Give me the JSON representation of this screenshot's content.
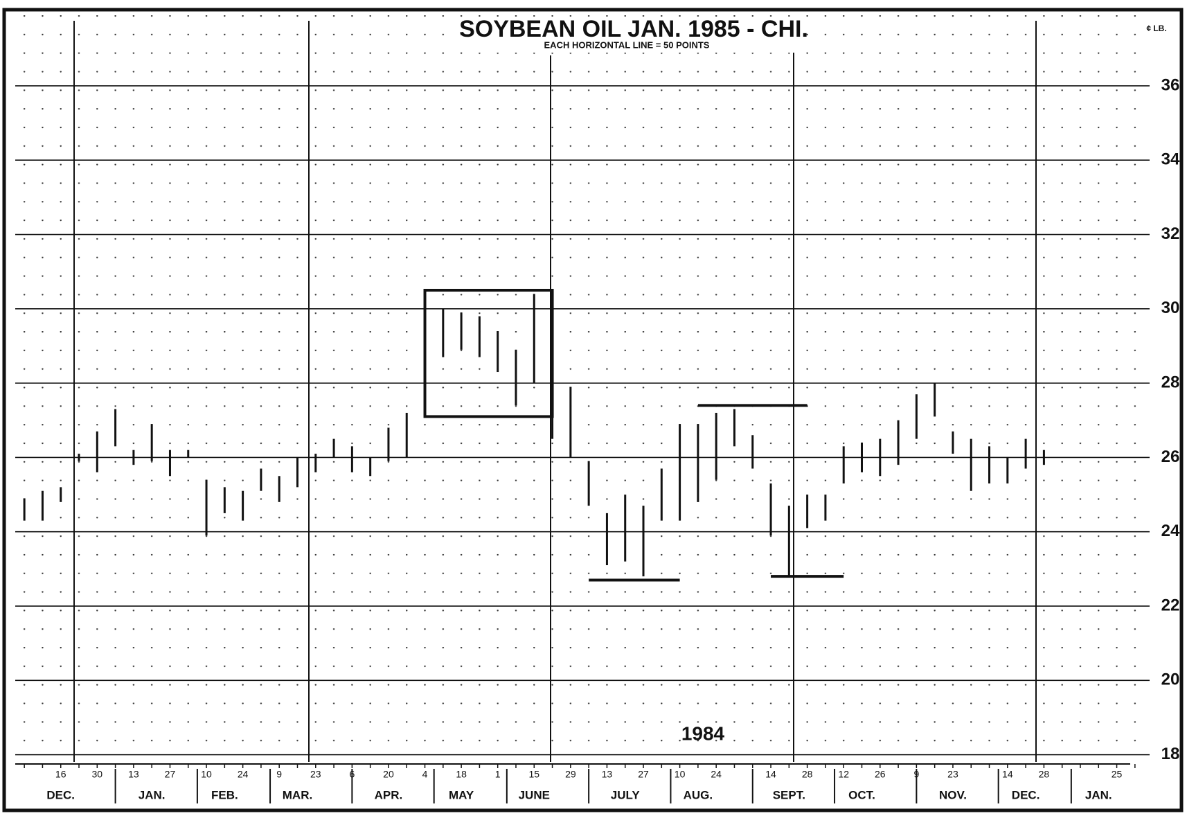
{
  "chart_data": {
    "type": "range_bar",
    "title": "SOYBEAN OIL JAN. 1985 - CHI.",
    "subtitle": "EACH HORIZONTAL LINE = 50 POINTS",
    "y_label": "¢ LB.",
    "annotation": "1984",
    "color": "#111111",
    "categories": [
      null,
      null,
      "16",
      null,
      "30",
      null,
      "13",
      null,
      "27",
      null,
      "10",
      null,
      "24",
      null,
      "9",
      null,
      "23",
      null,
      "6",
      null,
      "20",
      null,
      "4",
      null,
      "18",
      null,
      "1",
      null,
      "15",
      null,
      "29",
      null,
      "13",
      null,
      "27",
      null,
      "10",
      null,
      "24",
      null,
      null,
      "14",
      null,
      "28",
      null,
      "12",
      null,
      "26",
      null,
      "9",
      null,
      "23",
      null,
      null,
      "14",
      null,
      "28",
      null,
      null,
      null,
      "25",
      null
    ],
    "months": [
      null,
      null,
      "DEC.",
      null,
      null,
      null,
      null,
      "JAN.",
      null,
      null,
      null,
      "FEB.",
      null,
      null,
      null,
      "MAR.",
      null,
      null,
      null,
      null,
      "APR.",
      null,
      null,
      null,
      "MAY",
      null,
      null,
      null,
      "JUNE",
      null,
      null,
      null,
      null,
      "JULY",
      null,
      null,
      null,
      "AUG.",
      null,
      null,
      null,
      null,
      "SEPT.",
      null,
      null,
      null,
      "OCT.",
      null,
      null,
      null,
      null,
      "NOV.",
      null,
      null,
      null,
      "DEC.",
      null,
      null,
      null,
      "JAN.",
      null,
      null
    ],
    "low": [
      24.3,
      24.3,
      24.8,
      25.9,
      25.6,
      26.3,
      25.8,
      25.9,
      25.5,
      26.0,
      23.9,
      24.5,
      24.3,
      25.1,
      24.8,
      25.2,
      25.6,
      26.0,
      25.6,
      25.5,
      25.9,
      26.0,
      27.2,
      28.7,
      28.9,
      28.7,
      28.3,
      27.4,
      28.0,
      26.5,
      26.0,
      24.7,
      23.1,
      23.2,
      22.8,
      24.3,
      24.3,
      24.8,
      25.4,
      26.3,
      25.7,
      23.9,
      22.8,
      24.1,
      24.3,
      25.3,
      25.6,
      25.5,
      25.8,
      26.5,
      27.1,
      26.1,
      25.1,
      25.3,
      25.3,
      25.7,
      25.8,
      null,
      null,
      null,
      null,
      null
    ],
    "high": [
      24.9,
      25.1,
      25.2,
      26.1,
      26.7,
      27.3,
      26.2,
      26.9,
      26.2,
      26.2,
      25.4,
      25.2,
      25.1,
      25.7,
      25.5,
      26.0,
      26.1,
      26.5,
      26.3,
      26.0,
      26.8,
      27.2,
      28.6,
      30.0,
      29.9,
      29.8,
      29.4,
      28.9,
      30.4,
      30.2,
      27.9,
      25.9,
      24.5,
      25.0,
      24.7,
      25.7,
      26.9,
      26.9,
      27.2,
      27.3,
      26.6,
      25.3,
      24.7,
      25.0,
      25.0,
      26.3,
      26.4,
      26.5,
      27.0,
      27.7,
      28.0,
      26.7,
      26.5,
      26.3,
      26.0,
      26.5,
      26.2,
      null,
      null,
      null,
      null,
      null
    ],
    "box": {
      "x": [
        22,
        29
      ],
      "y": [
        27.1,
        30.5
      ]
    },
    "level_lines": [
      {
        "y": 22.7,
        "x": [
          31,
          36
        ]
      },
      {
        "y": 27.4,
        "x": [
          37,
          43
        ]
      },
      {
        "y": 22.8,
        "x": [
          41,
          45
        ]
      }
    ],
    "ylim": [
      17.9,
      37.9
    ],
    "yticks": [
      18,
      20,
      22,
      24,
      26,
      28,
      30,
      32,
      34,
      36
    ],
    "grid": true
  }
}
